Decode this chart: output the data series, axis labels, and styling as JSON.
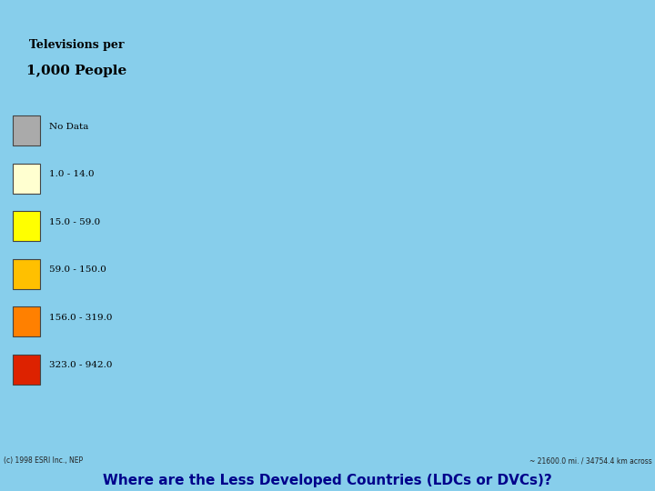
{
  "title_line1": "Televisions per",
  "title_line2": "1,000 People",
  "legend_items": [
    {
      "label": "No Data",
      "color": "#aaaaaa",
      "edgecolor": "#555555"
    },
    {
      "label": "1.0 - 14.0",
      "color": "#ffffd0",
      "edgecolor": "#555555"
    },
    {
      "label": "15.0 - 59.0",
      "color": "#ffff00",
      "edgecolor": "#555555"
    },
    {
      "label": "59.0 - 150.0",
      "color": "#ffc000",
      "edgecolor": "#555555"
    },
    {
      "label": "156.0 - 319.0",
      "color": "#ff8000",
      "edgecolor": "#555555"
    },
    {
      "label": "323.0 - 942.0",
      "color": "#dd2200",
      "edgecolor": "#555555"
    }
  ],
  "bottom_text": "Where are the Less Developed Countries (LDCs or DVCs)?",
  "copyright_text": "(c) 1998 ESRI Inc., NEP",
  "scale_text": "~ 21600.0 mi. / 34754.4 km across",
  "bg_color": "#87ceeb",
  "ocean_color": "#87ceeb",
  "legend_bg": "#ffffff",
  "bottom_text_color": "#00008b",
  "antarctica_color": "#aaaaaa",
  "country_edge_color": "#000000",
  "figsize": [
    7.2,
    5.4
  ],
  "dpi": 100,
  "country_colors": {
    "United States of America": "#dd2200",
    "Canada": "#dd2200",
    "Mexico": "#ff8000",
    "Guatemala": "#ffc000",
    "Belize": "#ffc000",
    "Honduras": "#ffc000",
    "El Salvador": "#ffc000",
    "Nicaragua": "#ffc000",
    "Costa Rica": "#ffc000",
    "Panama": "#ffc000",
    "Cuba": "#ff8000",
    "Jamaica": "#ff8000",
    "Haiti": "#ffffd0",
    "Dominican Republic": "#ffc000",
    "Puerto Rico": "#dd2200",
    "Trinidad and Tobago": "#ff8000",
    "Bahamas": "#ffc000",
    "Barbados": "#ff8000",
    "Venezuela": "#ffc000",
    "Colombia": "#ffc000",
    "Ecuador": "#ffc000",
    "Peru": "#ffc000",
    "Bolivia": "#ffc000",
    "Brazil": "#ff8000",
    "Paraguay": "#ffc000",
    "Uruguay": "#ff8000",
    "Argentina": "#ff8000",
    "Chile": "#ff8000",
    "Guyana": "#ffc000",
    "Suriname": "#ffc000",
    "United Kingdom": "#dd2200",
    "Ireland": "#dd2200",
    "France": "#dd2200",
    "Spain": "#dd2200",
    "Portugal": "#dd2200",
    "Germany": "#dd2200",
    "Netherlands": "#dd2200",
    "Belgium": "#dd2200",
    "Luxembourg": "#dd2200",
    "Switzerland": "#dd2200",
    "Austria": "#dd2200",
    "Italy": "#dd2200",
    "Greece": "#dd2200",
    "Sweden": "#dd2200",
    "Norway": "#dd2200",
    "Finland": "#dd2200",
    "Denmark": "#dd2200",
    "Iceland": "#dd2200",
    "Poland": "#dd2200",
    "Czech Republic": "#dd2200",
    "Czechia": "#dd2200",
    "Slovakia": "#dd2200",
    "Hungary": "#dd2200",
    "Romania": "#ff8000",
    "Bulgaria": "#ff8000",
    "Serbia": "#ff8000",
    "Croatia": "#ff8000",
    "Slovenia": "#dd2200",
    "Bosnia and Herzegovina": "#ff8000",
    "Albania": "#ffc000",
    "North Macedonia": "#ffc000",
    "Macedonia": "#ffc000",
    "Montenegro": "#ff8000",
    "Moldova": "#ff8000",
    "Ukraine": "#ff8000",
    "Belarus": "#ff8000",
    "Estonia": "#dd2200",
    "Latvia": "#dd2200",
    "Lithuania": "#dd2200",
    "Russia": "#dd2200",
    "Turkey": "#ffc000",
    "Georgia": "#ffc000",
    "Armenia": "#ffc000",
    "Azerbaijan": "#ffc000",
    "Kazakhstan": "#ffc000",
    "Uzbekistan": "#ffc000",
    "Turkmenistan": "#ffc000",
    "Kyrgyzstan": "#ffc000",
    "Tajikistan": "#ffffd0",
    "Mongolia": "#ffff00",
    "China": "#ffff00",
    "Japan": "#dd2200",
    "South Korea": "#dd2200",
    "North Korea": "#ffff00",
    "Taiwan": "#dd2200",
    "Hong Kong": "#dd2200",
    "Vietnam": "#ffff00",
    "Laos": "#ffffd0",
    "Cambodia": "#ffffd0",
    "Thailand": "#ffc000",
    "Myanmar": "#ffffd0",
    "Malaysia": "#ffc000",
    "Singapore": "#dd2200",
    "Indonesia": "#ffc000",
    "Philippines": "#ffc000",
    "Brunei": "#ff8000",
    "Papua New Guinea": "#ffffd0",
    "India": "#ffff00",
    "Pakistan": "#ffff00",
    "Bangladesh": "#ffffd0",
    "Sri Lanka": "#ffff00",
    "Nepal": "#ffffd0",
    "Bhutan": "#ffffd0",
    "Afghanistan": "#ffffd0",
    "Iran": "#ffc000",
    "Iraq": "#ffc000",
    "Syria": "#ffc000",
    "Lebanon": "#ffc000",
    "Israel": "#dd2200",
    "Jordan": "#ffc000",
    "Saudi Arabia": "#ffc000",
    "Yemen": "#ffffd0",
    "Oman": "#ffc000",
    "United Arab Emirates": "#ff8000",
    "Qatar": "#ff8000",
    "Kuwait": "#ff8000",
    "Bahrain": "#ff8000",
    "Egypt": "#ffc000",
    "Libya": "#ffc000",
    "Tunisia": "#ffc000",
    "Algeria": "#ffc000",
    "Morocco": "#ffc000",
    "Mauritania": "#ffffd0",
    "Mali": "#ffffd0",
    "Niger": "#ffffd0",
    "Chad": "#ffffd0",
    "Sudan": "#ffffd0",
    "Ethiopia": "#ffffd0",
    "Eritrea": "#ffffd0",
    "Djibouti": "#ffffd0",
    "Somalia": "#ffffd0",
    "Kenya": "#ffff00",
    "Uganda": "#ffffd0",
    "Rwanda": "#ffffd0",
    "Burundi": "#ffffd0",
    "Tanzania": "#ffffd0",
    "Mozambique": "#ffffd0",
    "Zambia": "#ffffd0",
    "Zimbabwe": "#ffff00",
    "Malawi": "#ffffd0",
    "Angola": "#ffff00",
    "Democratic Republic of the Congo": "#ffffd0",
    "Republic of the Congo": "#ffc000",
    "Central African Republic": "#ffffd0",
    "Cameroon": "#ffff00",
    "Nigeria": "#ffff00",
    "Ghana": "#ffff00",
    "Ivory Coast": "#ffff00",
    "Cote d'Ivoire": "#ffff00",
    "Liberia": "#ffffd0",
    "Sierra Leone": "#ffffd0",
    "Guinea": "#ffffd0",
    "Guinea-Bissau": "#ffffd0",
    "Senegal": "#ffff00",
    "Gambia": "#ffffd0",
    "Burkina Faso": "#ffffd0",
    "Togo": "#ffff00",
    "Benin": "#ffff00",
    "Gabon": "#ffc000",
    "Equatorial Guinea": "#ffc000",
    "Sao Tome and Principe": "#ffff00",
    "Namibia": "#ffff00",
    "Botswana": "#ffff00",
    "South Africa": "#ff8000",
    "Lesotho": "#ffff00",
    "Swaziland": "#ffff00",
    "Eswatini": "#ffff00",
    "Madagascar": "#ffff00",
    "Comoros": "#ffffd0",
    "Mauritius": "#ff8000",
    "Seychelles": "#ff8000",
    "Australia": "#ff8000",
    "New Zealand": "#dd2200",
    "Greenland": "#aaaaaa",
    "Western Sahara": "#aaaaaa",
    "Kosovo": "#ff8000"
  }
}
